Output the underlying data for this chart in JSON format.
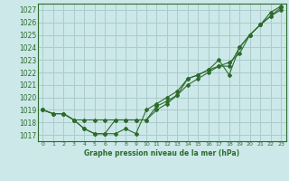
{
  "title": "Graphe pression niveau de la mer (hPa)",
  "bg_color": "#cce8e8",
  "grid_color": "#aacccc",
  "line_color": "#2d6b2d",
  "xlim": [
    -0.5,
    23.5
  ],
  "ylim": [
    1016.5,
    1027.5
  ],
  "yticks": [
    1017,
    1018,
    1019,
    1020,
    1021,
    1022,
    1023,
    1024,
    1025,
    1026,
    1027
  ],
  "xticks": [
    0,
    1,
    2,
    3,
    4,
    5,
    6,
    7,
    8,
    9,
    10,
    11,
    12,
    13,
    14,
    15,
    16,
    17,
    18,
    19,
    20,
    21,
    22,
    23
  ],
  "series1": [
    1019.0,
    1018.7,
    1018.7,
    1018.2,
    1018.2,
    1018.2,
    1018.2,
    1018.2,
    1018.2,
    1018.2,
    1018.2,
    1019.0,
    1019.5,
    1020.2,
    1021.0,
    1021.5,
    1022.0,
    1022.5,
    1022.8,
    1023.5,
    1025.0,
    1025.8,
    1026.5,
    1027.2
  ],
  "series2": [
    1019.0,
    1018.7,
    1018.7,
    1018.2,
    1017.5,
    1017.1,
    1017.1,
    1017.1,
    1017.5,
    1017.1,
    1019.0,
    1019.5,
    1020.0,
    1020.5,
    1021.5,
    1021.8,
    1022.2,
    1023.0,
    1021.8,
    1024.0,
    1025.0,
    1025.8,
    1026.5,
    1027.0
  ],
  "series3": [
    1019.0,
    1018.7,
    1018.7,
    1018.2,
    1017.5,
    1017.1,
    1017.1,
    1018.2,
    1018.2,
    1018.2,
    1018.2,
    1019.3,
    1019.7,
    1020.2,
    1021.5,
    1021.8,
    1022.2,
    1022.5,
    1022.5,
    1024.0,
    1025.0,
    1025.8,
    1026.8,
    1027.3
  ]
}
